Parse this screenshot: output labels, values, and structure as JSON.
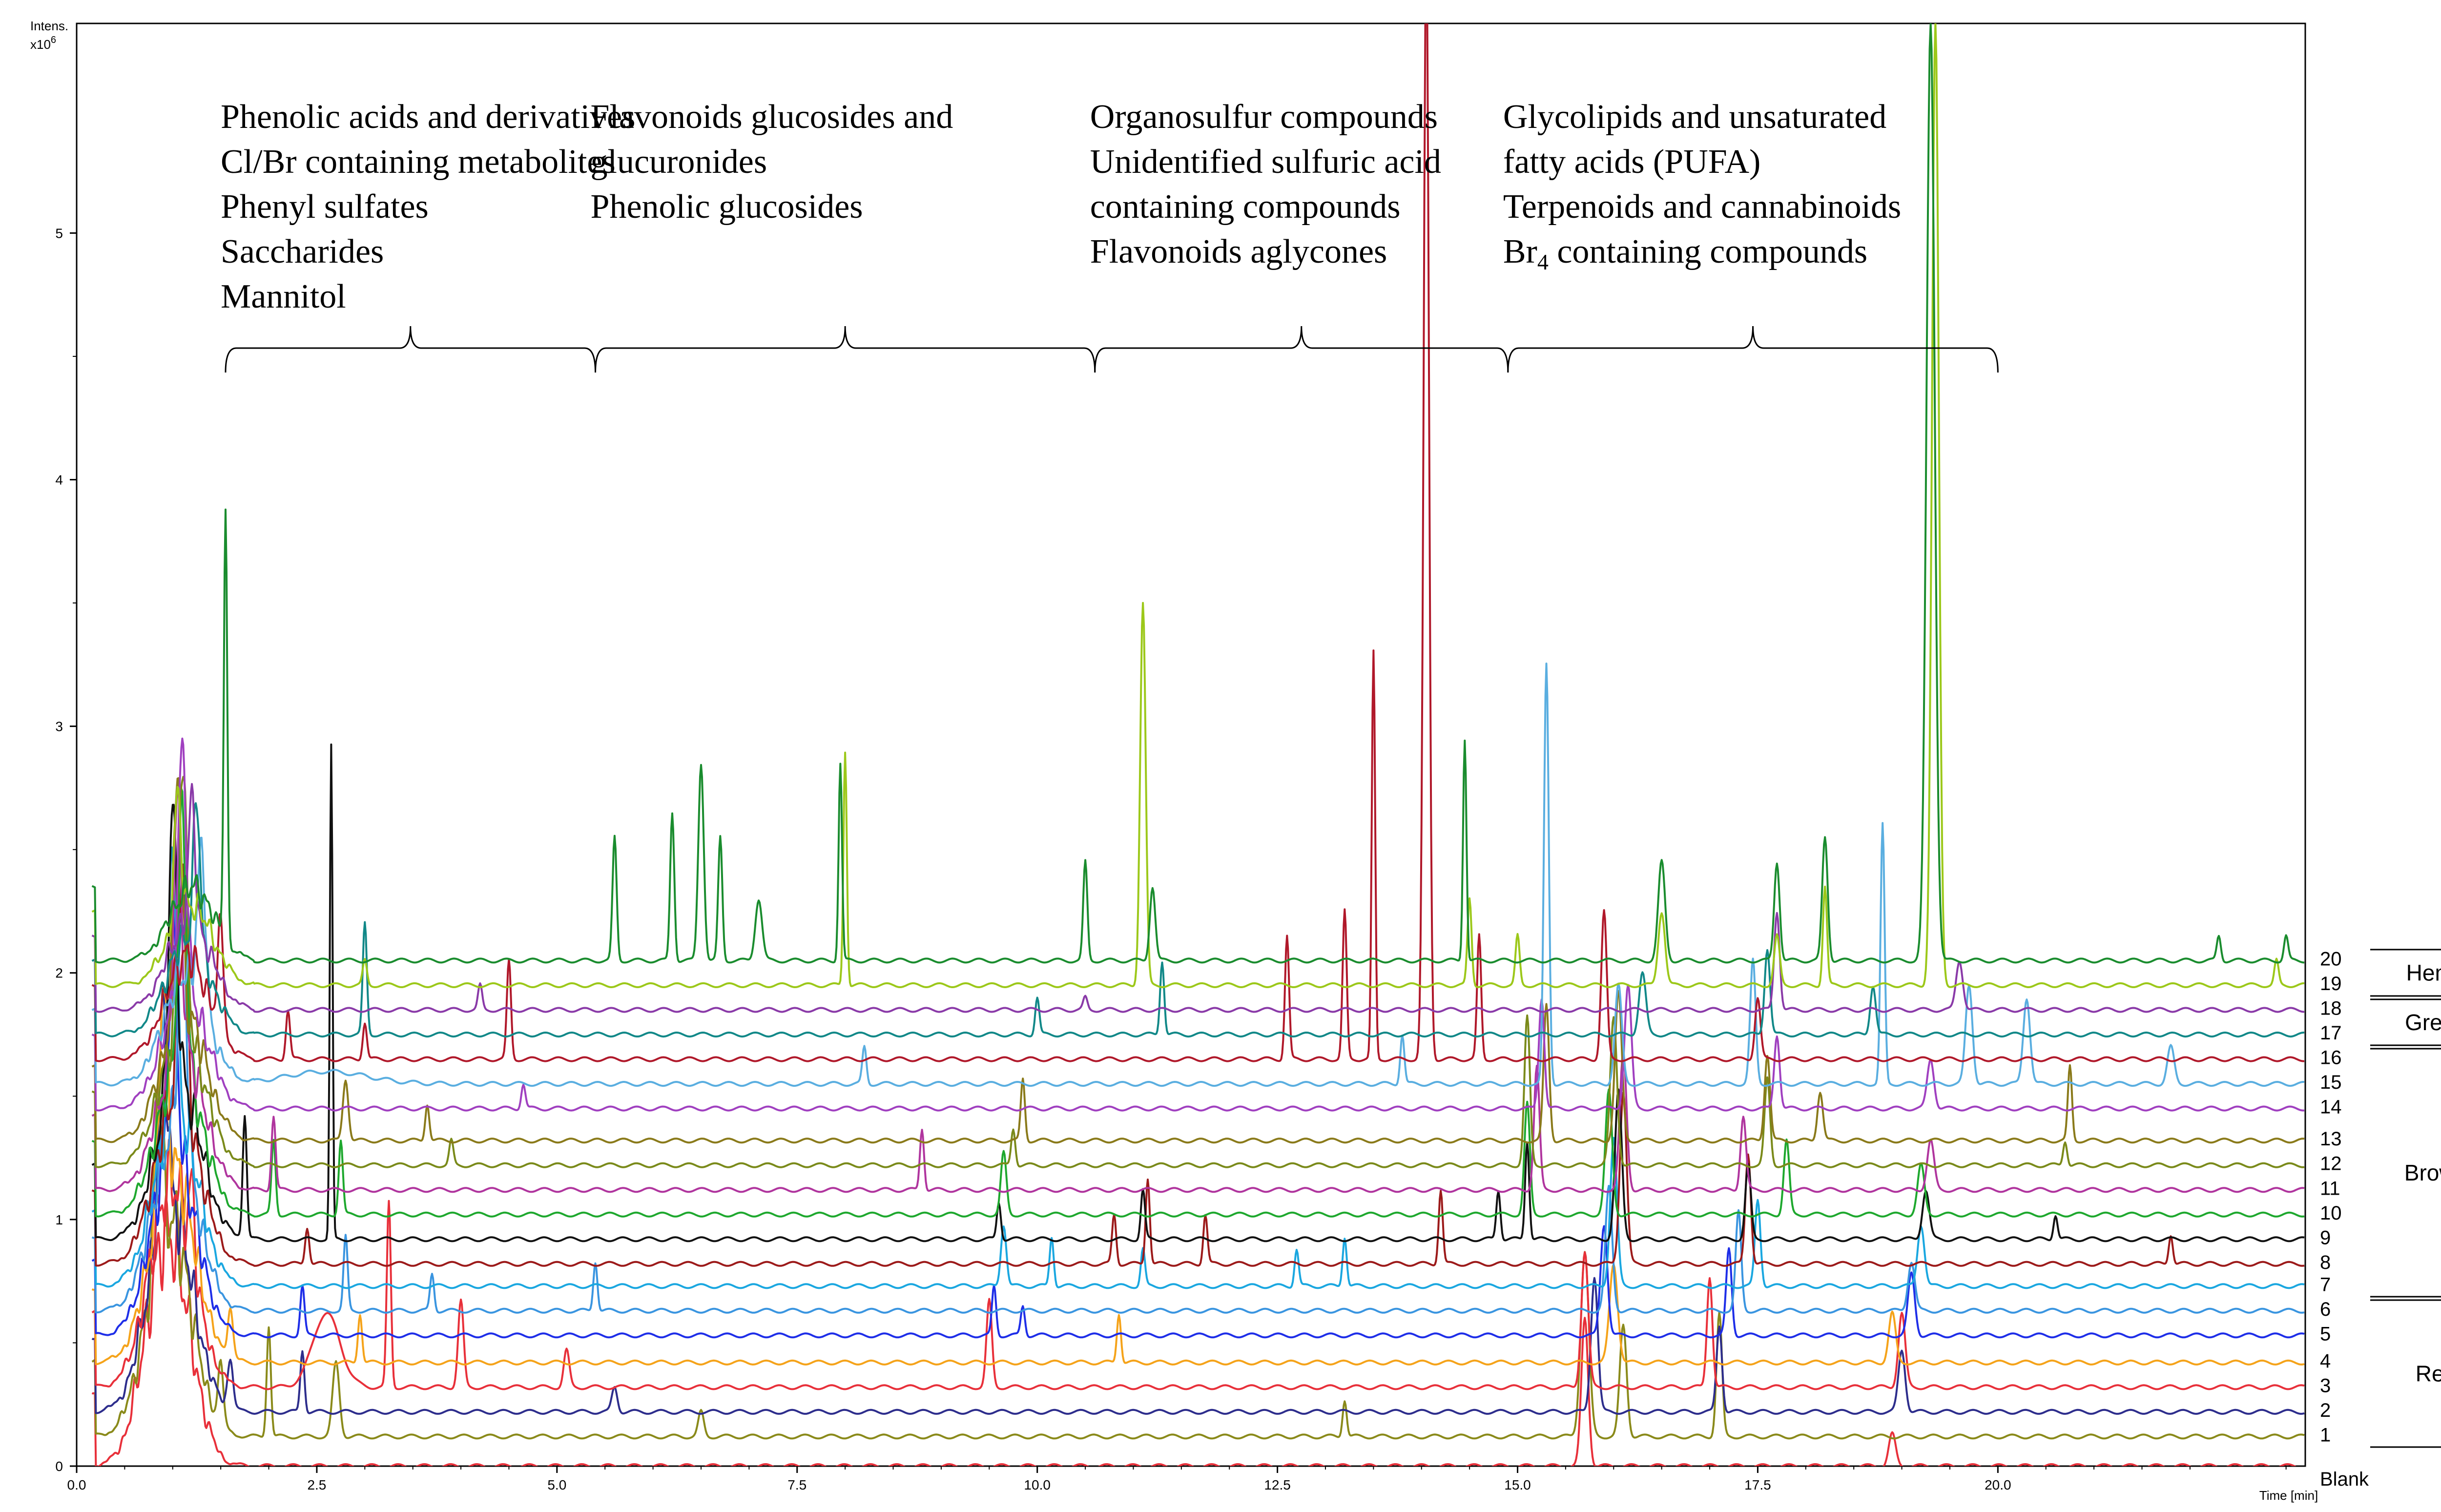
{
  "chart_data": {
    "type": "line",
    "title": "",
    "ylabel": "Intens.",
    "yunit": "x10",
    "yunit_exp": "6",
    "xlabel": "Time [min]",
    "xlim": [
      0,
      23.2
    ],
    "ylim": [
      0,
      5.85
    ],
    "x_ticks": [
      0.0,
      2.5,
      5.0,
      7.5,
      10.0,
      12.5,
      15.0,
      17.5,
      20.0
    ],
    "x_tick_labels": [
      "0.0",
      "2.5",
      "5.0",
      "7.5",
      "10.0",
      "12.5",
      "15.0",
      "17.5",
      "20.0"
    ],
    "y_ticks": [
      0,
      1,
      2,
      3,
      4,
      5
    ],
    "y_tick_labels": [
      "0",
      "1",
      "2",
      "3",
      "4",
      "5"
    ],
    "grid": false,
    "compound_groups": [
      {
        "range": [
          1.55,
          5.4
        ],
        "lines": [
          "Phenolic acids and derivatives",
          "Cl/Br containing metabolites",
          "Phenyl sulfates",
          "Saccharides",
          "Mannitol"
        ]
      },
      {
        "range": [
          5.4,
          10.6
        ],
        "lines": [
          "Flavonoids glucosides and",
          "glucuronides",
          "Phenolic glucosides"
        ]
      },
      {
        "range": [
          10.6,
          14.9
        ],
        "lines": [
          "Organosulfur compounds",
          "Unidentified sulfuric acid",
          "containing compounds",
          "Flavonoids aglycones"
        ]
      },
      {
        "range": [
          14.9,
          20.0
        ],
        "lines": [
          "Glycolipids and unsaturated",
          "fatty acids (PUFA)",
          "Terpenoids and cannabinoids",
          "Br4 containing compounds"
        ]
      }
    ],
    "sample_groups": [
      {
        "name": "Hemp",
        "from": 19,
        "to": 20
      },
      {
        "name": "Green",
        "from": 17,
        "to": 18
      },
      {
        "name": "Brown",
        "from": 7,
        "to": 16
      },
      {
        "name": "Red",
        "from": 1,
        "to": 6
      }
    ],
    "series": [
      {
        "label": "Blank",
        "color": "#e8303a",
        "baseline": 0.0,
        "peaks": [
          [
            15.7,
            0.6,
            0.05
          ],
          [
            18.9,
            0.13,
            0.05
          ]
        ]
      },
      {
        "label": "1",
        "color": "#8a8a1a",
        "baseline": 0.12,
        "peaks": [
          [
            0.85,
            0.7,
            0.05
          ],
          [
            1.5,
            0.25,
            0.04
          ],
          [
            2.0,
            0.45,
            0.03
          ],
          [
            2.7,
            0.3,
            0.05
          ],
          [
            6.5,
            0.1,
            0.04
          ],
          [
            13.2,
            0.15,
            0.03
          ],
          [
            15.7,
            0.75,
            0.06
          ],
          [
            16.1,
            0.45,
            0.05
          ],
          [
            17.1,
            0.5,
            0.04
          ]
        ]
      },
      {
        "label": "2",
        "color": "#2d2d8c",
        "baseline": 0.22,
        "peaks": [
          [
            0.9,
            0.8,
            0.06
          ],
          [
            1.6,
            0.2,
            0.04
          ],
          [
            2.35,
            0.25,
            0.03
          ],
          [
            5.6,
            0.1,
            0.04
          ],
          [
            15.8,
            0.55,
            0.05
          ],
          [
            17.1,
            0.35,
            0.04
          ],
          [
            19.0,
            0.25,
            0.05
          ]
        ]
      },
      {
        "label": "3",
        "color": "#e8303a",
        "baseline": 0.32,
        "peaks": [
          [
            1.2,
            0.3,
            0.04
          ],
          [
            2.6,
            0.3,
            0.2
          ],
          [
            3.25,
            0.75,
            0.03
          ],
          [
            4.0,
            0.35,
            0.04
          ],
          [
            5.1,
            0.15,
            0.04
          ],
          [
            9.5,
            0.35,
            0.04
          ],
          [
            15.7,
            0.55,
            0.05
          ],
          [
            17.0,
            0.45,
            0.04
          ],
          [
            19.0,
            0.3,
            0.05
          ]
        ]
      },
      {
        "label": "4",
        "color": "#f5a31a",
        "baseline": 0.42,
        "peaks": [
          [
            0.9,
            0.8,
            0.06
          ],
          [
            1.6,
            0.2,
            0.04
          ],
          [
            2.95,
            0.2,
            0.03
          ],
          [
            10.85,
            0.2,
            0.03
          ],
          [
            16.0,
            0.4,
            0.06
          ],
          [
            18.9,
            0.2,
            0.05
          ]
        ]
      },
      {
        "label": "5",
        "color": "#1e2ee8",
        "baseline": 0.53,
        "peaks": [
          [
            1.0,
            0.9,
            0.06
          ],
          [
            2.35,
            0.2,
            0.03
          ],
          [
            9.55,
            0.2,
            0.03
          ],
          [
            9.85,
            0.12,
            0.03
          ],
          [
            15.9,
            0.45,
            0.05
          ],
          [
            17.2,
            0.35,
            0.04
          ],
          [
            19.1,
            0.25,
            0.05
          ]
        ]
      },
      {
        "label": "6",
        "color": "#3a95e0",
        "baseline": 0.63,
        "peaks": [
          [
            1.1,
            1.0,
            0.06
          ],
          [
            2.8,
            0.3,
            0.03
          ],
          [
            3.7,
            0.15,
            0.03
          ],
          [
            5.4,
            0.2,
            0.03
          ],
          [
            15.95,
            0.5,
            0.05
          ],
          [
            17.3,
            0.4,
            0.04
          ],
          [
            19.1,
            0.2,
            0.05
          ]
        ]
      },
      {
        "label": "7",
        "color": "#1aa7e0",
        "baseline": 0.73,
        "peaks": [
          [
            1.0,
            1.1,
            0.06
          ],
          [
            9.65,
            0.25,
            0.04
          ],
          [
            10.15,
            0.2,
            0.03
          ],
          [
            11.1,
            0.15,
            0.03
          ],
          [
            12.7,
            0.15,
            0.03
          ],
          [
            13.2,
            0.2,
            0.03
          ],
          [
            16.0,
            0.6,
            0.05
          ],
          [
            17.5,
            0.35,
            0.04
          ],
          [
            19.2,
            0.25,
            0.05
          ]
        ]
      },
      {
        "label": "8",
        "color": "#9c1a1a",
        "baseline": 0.82,
        "peaks": [
          [
            1.1,
            1.0,
            0.06
          ],
          [
            2.4,
            0.15,
            0.03
          ],
          [
            10.8,
            0.2,
            0.03
          ],
          [
            11.15,
            0.35,
            0.03
          ],
          [
            11.75,
            0.2,
            0.03
          ],
          [
            14.2,
            0.3,
            0.03
          ],
          [
            16.1,
            0.7,
            0.05
          ],
          [
            17.4,
            0.45,
            0.04
          ],
          [
            21.8,
            0.12,
            0.03
          ]
        ]
      },
      {
        "label": "9",
        "color": "#111111",
        "baseline": 0.92,
        "peaks": [
          [
            1.0,
            1.1,
            0.06
          ],
          [
            1.75,
            0.5,
            0.03
          ],
          [
            2.65,
            2.0,
            0.02
          ],
          [
            9.6,
            0.15,
            0.03
          ],
          [
            11.1,
            0.2,
            0.03
          ],
          [
            14.8,
            0.2,
            0.03
          ],
          [
            15.1,
            0.4,
            0.03
          ],
          [
            16.05,
            0.6,
            0.05
          ],
          [
            17.4,
            0.3,
            0.04
          ],
          [
            19.25,
            0.2,
            0.05
          ],
          [
            20.6,
            0.1,
            0.03
          ]
        ]
      },
      {
        "label": "10",
        "color": "#1ea82e",
        "baseline": 1.02,
        "peaks": [
          [
            1.1,
            1.0,
            0.06
          ],
          [
            2.05,
            0.3,
            0.03
          ],
          [
            2.75,
            0.3,
            0.03
          ],
          [
            9.65,
            0.25,
            0.04
          ],
          [
            15.1,
            0.45,
            0.04
          ],
          [
            15.95,
            0.5,
            0.05
          ],
          [
            17.8,
            0.3,
            0.04
          ],
          [
            19.2,
            0.2,
            0.05
          ]
        ]
      },
      {
        "label": "11",
        "color": "#b0359e",
        "baseline": 1.12,
        "peaks": [
          [
            1.05,
            1.0,
            0.06
          ],
          [
            2.05,
            0.3,
            0.03
          ],
          [
            8.8,
            0.25,
            0.03
          ],
          [
            15.2,
            0.5,
            0.04
          ],
          [
            16.1,
            0.55,
            0.05
          ],
          [
            17.35,
            0.3,
            0.04
          ],
          [
            19.3,
            0.2,
            0.05
          ]
        ]
      },
      {
        "label": "12",
        "color": "#7a8a1a",
        "baseline": 1.22,
        "peaks": [
          [
            1.1,
            1.1,
            0.06
          ],
          [
            3.9,
            0.1,
            0.03
          ],
          [
            9.75,
            0.15,
            0.03
          ],
          [
            15.1,
            0.6,
            0.04
          ],
          [
            16.0,
            0.6,
            0.05
          ],
          [
            17.6,
            0.35,
            0.04
          ],
          [
            20.7,
            0.1,
            0.03
          ]
        ]
      },
      {
        "label": "13",
        "color": "#8a7a1a",
        "baseline": 1.32,
        "peaks": [
          [
            1.05,
            1.0,
            0.06
          ],
          [
            2.8,
            0.25,
            0.04
          ],
          [
            3.65,
            0.15,
            0.03
          ],
          [
            9.85,
            0.25,
            0.03
          ],
          [
            15.3,
            0.55,
            0.04
          ],
          [
            16.05,
            0.6,
            0.05
          ],
          [
            17.6,
            0.35,
            0.04
          ],
          [
            18.15,
            0.2,
            0.04
          ],
          [
            20.75,
            0.3,
            0.03
          ]
        ]
      },
      {
        "label": "14",
        "color": "#a040c0",
        "baseline": 1.45,
        "peaks": [
          [
            1.1,
            1.0,
            0.06
          ],
          [
            4.65,
            0.1,
            0.03
          ],
          [
            15.25,
            0.45,
            0.04
          ],
          [
            16.15,
            0.5,
            0.05
          ],
          [
            17.7,
            0.3,
            0.04
          ],
          [
            19.3,
            0.2,
            0.05
          ]
        ]
      },
      {
        "label": "15",
        "color": "#5aaee0",
        "baseline": 1.55,
        "peaks": [
          [
            1.3,
            0.6,
            0.06
          ],
          [
            2.6,
            0.05,
            0.6
          ],
          [
            8.2,
            0.15,
            0.03
          ],
          [
            13.8,
            0.2,
            0.03
          ],
          [
            15.3,
            1.7,
            0.035
          ],
          [
            16.05,
            0.4,
            0.05
          ],
          [
            17.45,
            0.5,
            0.04
          ],
          [
            18.8,
            1.05,
            0.03
          ],
          [
            19.7,
            0.4,
            0.05
          ],
          [
            20.3,
            0.35,
            0.05
          ],
          [
            21.8,
            0.15,
            0.05
          ]
        ]
      },
      {
        "label": "16",
        "color": "#b0182a",
        "baseline": 1.65,
        "peaks": [
          [
            1.5,
            0.45,
            0.04
          ],
          [
            2.2,
            0.2,
            0.03
          ],
          [
            3.0,
            0.15,
            0.03
          ],
          [
            4.5,
            0.4,
            0.03
          ],
          [
            12.6,
            0.5,
            0.03
          ],
          [
            13.2,
            0.6,
            0.03
          ],
          [
            13.5,
            1.65,
            0.025
          ],
          [
            14.05,
            4.5,
            0.04
          ],
          [
            14.6,
            0.5,
            0.03
          ],
          [
            15.9,
            0.6,
            0.04
          ],
          [
            17.5,
            0.25,
            0.04
          ]
        ]
      },
      {
        "label": "17",
        "color": "#118888",
        "baseline": 1.75,
        "peaks": [
          [
            1.25,
            0.6,
            0.05
          ],
          [
            3.0,
            0.45,
            0.03
          ],
          [
            10.0,
            0.15,
            0.03
          ],
          [
            11.3,
            0.3,
            0.03
          ],
          [
            16.3,
            0.25,
            0.05
          ],
          [
            17.6,
            0.35,
            0.04
          ],
          [
            18.7,
            0.2,
            0.04
          ]
        ]
      },
      {
        "label": "18",
        "color": "#8a3aa8",
        "baseline": 1.85,
        "peaks": [
          [
            1.2,
            0.5,
            0.05
          ],
          [
            4.2,
            0.1,
            0.03
          ],
          [
            10.5,
            0.05,
            0.03
          ],
          [
            17.7,
            0.4,
            0.04
          ],
          [
            19.6,
            0.2,
            0.05
          ]
        ]
      },
      {
        "label": "19",
        "color": "#9cc81a",
        "baseline": 1.95,
        "peaks": [
          [
            1.05,
            0.5,
            0.05
          ],
          [
            3.0,
            0.1,
            0.03
          ],
          [
            8.0,
            0.95,
            0.025
          ],
          [
            11.1,
            1.55,
            0.04
          ],
          [
            14.5,
            0.35,
            0.03
          ],
          [
            15.0,
            0.2,
            0.03
          ],
          [
            16.5,
            0.3,
            0.05
          ],
          [
            17.7,
            0.2,
            0.04
          ],
          [
            18.2,
            0.4,
            0.03
          ],
          [
            19.35,
            3.9,
            0.05
          ],
          [
            22.9,
            0.1,
            0.03
          ]
        ]
      },
      {
        "label": "20",
        "color": "#1a8c2e",
        "baseline": 2.05,
        "peaks": [
          [
            1.55,
            1.75,
            0.025
          ],
          [
            5.6,
            0.5,
            0.03
          ],
          [
            6.2,
            0.6,
            0.03
          ],
          [
            6.5,
            0.8,
            0.04
          ],
          [
            6.7,
            0.5,
            0.03
          ],
          [
            7.1,
            0.25,
            0.05
          ],
          [
            7.95,
            0.8,
            0.025
          ],
          [
            10.5,
            0.4,
            0.03
          ],
          [
            11.2,
            0.3,
            0.04
          ],
          [
            14.45,
            0.9,
            0.025
          ],
          [
            16.5,
            0.4,
            0.05
          ],
          [
            17.7,
            0.4,
            0.04
          ],
          [
            18.2,
            0.5,
            0.04
          ],
          [
            19.3,
            3.8,
            0.06
          ],
          [
            22.3,
            0.1,
            0.03
          ],
          [
            23.0,
            0.1,
            0.03
          ]
        ]
      }
    ]
  }
}
